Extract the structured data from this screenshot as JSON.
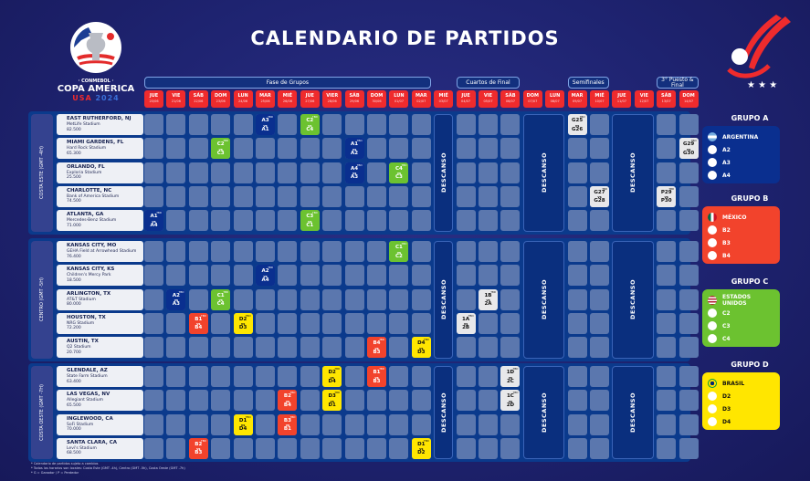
{
  "title": "CALENDARIO DE PARTIDOS",
  "logo": {
    "top": "· CONMEBOL ·",
    "name": "COPA AMERICA",
    "host": "USA",
    "year": "2024"
  },
  "phases": [
    {
      "label": "Fase de Grupos",
      "from": "20/06",
      "to": "02/07"
    },
    {
      "label": "Cuartos de Final",
      "from": "04/07",
      "to": "06/07"
    },
    {
      "label": "Semifinales",
      "from": "09/07",
      "to": "10/07"
    },
    {
      "label": "3° Puesto & Final",
      "from": "13/07",
      "to": "14/07"
    }
  ],
  "dates": [
    {
      "day": "JUE",
      "date": "20/06"
    },
    {
      "day": "VIE",
      "date": "21/06"
    },
    {
      "day": "SÁB",
      "date": "22/06"
    },
    {
      "day": "DOM",
      "date": "23/06"
    },
    {
      "day": "LUN",
      "date": "24/06"
    },
    {
      "day": "MAR",
      "date": "25/06"
    },
    {
      "day": "MIÉ",
      "date": "26/06"
    },
    {
      "day": "JUE",
      "date": "27/06"
    },
    {
      "day": "VIER",
      "date": "28/06"
    },
    {
      "day": "SÁB",
      "date": "29/06"
    },
    {
      "day": "DOM",
      "date": "30/06"
    },
    {
      "day": "LUN",
      "date": "01/07"
    },
    {
      "day": "MAR",
      "date": "02/07"
    },
    {
      "day": "MIÉ",
      "date": "03/07"
    },
    {
      "day": "JUE",
      "date": "04/07"
    },
    {
      "day": "VIE",
      "date": "05/07"
    },
    {
      "day": "SÁB",
      "date": "06/07"
    },
    {
      "day": "DOM",
      "date": "07/07"
    },
    {
      "day": "LUN",
      "date": "08/07"
    },
    {
      "day": "MAR",
      "date": "09/07"
    },
    {
      "day": "MIÉ",
      "date": "10/07"
    },
    {
      "day": "JUE",
      "date": "11/07"
    },
    {
      "day": "VIE",
      "date": "12/07"
    },
    {
      "day": "SÁB",
      "date": "13/07"
    },
    {
      "day": "DOM",
      "date": "14/07"
    }
  ],
  "rest_label": "DESCANSO",
  "rest_days": [
    [
      "03/07"
    ],
    [
      "07/07",
      "08/07"
    ],
    [
      "11/07",
      "12/07"
    ]
  ],
  "regions": [
    {
      "label": "COSTA ESTE (GMT -4H)",
      "venues": [
        {
          "city": "EAST RUTHERFORD, NJ",
          "stadium": "MetLife Stadium",
          "capacity": "82.500"
        },
        {
          "city": "MIAMI GARDENS, FL",
          "stadium": "Hard Rock Stadium",
          "capacity": "65.300"
        },
        {
          "city": "ORLANDO, FL",
          "stadium": "Exploria Stadium",
          "capacity": "25.500"
        },
        {
          "city": "CHARLOTTE, NC",
          "stadium": "Bank of America Stadium",
          "capacity": "74.500"
        },
        {
          "city": "ATLANTA, GA",
          "stadium": "Mercedes-Benz Stadium",
          "capacity": "71.000"
        }
      ]
    },
    {
      "label": "CENTRO (GMT -5H)",
      "venues": [
        {
          "city": "KANSAS CITY, MO",
          "stadium": "GEHA Field at Arrowhead Stadium",
          "capacity": "76.400"
        },
        {
          "city": "KANSAS CITY, KS",
          "stadium": "Children's Mercy Park",
          "capacity": "18.500"
        },
        {
          "city": "ARLINGTON, TX",
          "stadium": "AT&T Stadium",
          "capacity": "80.000"
        },
        {
          "city": "HOUSTON, TX",
          "stadium": "NRG Stadium",
          "capacity": "72.200"
        },
        {
          "city": "AUSTIN, TX",
          "stadium": "Q2 Stadium",
          "capacity": "20.700"
        }
      ]
    },
    {
      "label": "COSTA OESTE (GMT -7H)",
      "venues": [
        {
          "city": "GLENDALE, AZ",
          "stadium": "State Farm Stadium",
          "capacity": "63.400"
        },
        {
          "city": "LAS VEGAS, NV",
          "stadium": "Allegiant Stadium",
          "capacity": "65.500"
        },
        {
          "city": "INGLEWOOD, CA",
          "stadium": "SoFi Stadium",
          "capacity": "70.000"
        },
        {
          "city": "SANTA CLARA, CA",
          "stadium": "Levi's Stadium",
          "capacity": "68.500"
        }
      ]
    }
  ],
  "vs_label": "vs",
  "time_label": "TBD",
  "colors": {
    "A": "#0a2f8f",
    "B": "#f2432c",
    "C": "#6cc230",
    "D": "#ffe600",
    "KO": "#e8e8ea"
  },
  "matches": [
    {
      "venue": "EAST RUTHERFORD, NJ",
      "date": "25/06",
      "home": "A3",
      "away": "A1",
      "group": "A"
    },
    {
      "venue": "EAST RUTHERFORD, NJ",
      "date": "27/06",
      "home": "C2",
      "away": "C4",
      "group": "C"
    },
    {
      "venue": "EAST RUTHERFORD, NJ",
      "date": "09/07",
      "home": "G25",
      "away": "G26",
      "group": "KO"
    },
    {
      "venue": "MIAMI GARDENS, FL",
      "date": "23/06",
      "home": "C2",
      "away": "C3",
      "group": "C"
    },
    {
      "venue": "MIAMI GARDENS, FL",
      "date": "29/06",
      "home": "A1",
      "away": "A2",
      "group": "A"
    },
    {
      "venue": "MIAMI GARDENS, FL",
      "date": "14/07",
      "home": "G29",
      "away": "G30",
      "group": "KO"
    },
    {
      "venue": "ORLANDO, FL",
      "date": "29/06",
      "home": "A4",
      "away": "A3",
      "group": "A"
    },
    {
      "venue": "ORLANDO, FL",
      "date": "01/07",
      "home": "C4",
      "away": "C3",
      "group": "C"
    },
    {
      "venue": "CHARLOTTE, NC",
      "date": "10/07",
      "home": "G27",
      "away": "G28",
      "group": "KO"
    },
    {
      "venue": "CHARLOTTE, NC",
      "date": "13/07",
      "home": "P29",
      "away": "P30",
      "group": "KO"
    },
    {
      "venue": "ATLANTA, GA",
      "date": "20/06",
      "home": "A1",
      "away": "A4",
      "group": "A"
    },
    {
      "venue": "ATLANTA, GA",
      "date": "27/06",
      "home": "C3",
      "away": "C1",
      "group": "C"
    },
    {
      "venue": "KANSAS CITY, MO",
      "date": "01/07",
      "home": "C1",
      "away": "C2",
      "group": "C"
    },
    {
      "venue": "KANSAS CITY, KS",
      "date": "25/06",
      "home": "A2",
      "away": "A4",
      "group": "A"
    },
    {
      "venue": "ARLINGTON, TX",
      "date": "21/06",
      "home": "A2",
      "away": "A3",
      "group": "A"
    },
    {
      "venue": "ARLINGTON, TX",
      "date": "23/06",
      "home": "C1",
      "away": "C4",
      "group": "C"
    },
    {
      "venue": "ARLINGTON, TX",
      "date": "05/07",
      "home": "1B",
      "away": "2A",
      "group": "KO"
    },
    {
      "venue": "HOUSTON, TX",
      "date": "22/06",
      "home": "B1",
      "away": "B4",
      "group": "B"
    },
    {
      "venue": "HOUSTON, TX",
      "date": "24/06",
      "home": "D2",
      "away": "D3",
      "group": "D"
    },
    {
      "venue": "HOUSTON, TX",
      "date": "04/07",
      "home": "1A",
      "away": "2B",
      "group": "KO"
    },
    {
      "venue": "AUSTIN, TX",
      "date": "30/06",
      "home": "B4",
      "away": "B3",
      "group": "B"
    },
    {
      "venue": "AUSTIN, TX",
      "date": "02/07",
      "home": "D4",
      "away": "D3",
      "group": "D"
    },
    {
      "venue": "GLENDALE, AZ",
      "date": "28/06",
      "home": "D2",
      "away": "D4",
      "group": "D"
    },
    {
      "venue": "GLENDALE, AZ",
      "date": "30/06",
      "home": "B1",
      "away": "B3",
      "group": "B"
    },
    {
      "venue": "GLENDALE, AZ",
      "date": "06/07",
      "home": "1D",
      "away": "2C",
      "group": "KO"
    },
    {
      "venue": "LAS VEGAS, NV",
      "date": "26/06",
      "home": "B2",
      "away": "B4",
      "group": "B"
    },
    {
      "venue": "LAS VEGAS, NV",
      "date": "28/06",
      "home": "D3",
      "away": "D1",
      "group": "D"
    },
    {
      "venue": "LAS VEGAS, NV",
      "date": "06/07",
      "home": "1C",
      "away": "2D",
      "group": "KO"
    },
    {
      "venue": "INGLEWOOD, CA",
      "date": "24/06",
      "home": "D1",
      "away": "D4",
      "group": "D"
    },
    {
      "venue": "INGLEWOOD, CA",
      "date": "26/06",
      "home": "B3",
      "away": "B1",
      "group": "B"
    },
    {
      "venue": "SANTA CLARA, CA",
      "date": "22/06",
      "home": "B2",
      "away": "B3",
      "group": "B"
    },
    {
      "venue": "SANTA CLARA, CA",
      "date": "02/07",
      "home": "D1",
      "away": "D2",
      "group": "D"
    }
  ],
  "groups": [
    {
      "title": "GRUPO A",
      "key": "A",
      "text": "#ffffff",
      "teams": [
        "ARGENTINA",
        "A2",
        "A3",
        "A4"
      ],
      "flag": "argentina-flag-icon"
    },
    {
      "title": "GRUPO B",
      "key": "B",
      "text": "#ffffff",
      "teams": [
        "MÉXICO",
        "B2",
        "B3",
        "B4"
      ],
      "flag": "mexico-flag-icon"
    },
    {
      "title": "GRUPO C",
      "key": "C",
      "text": "#ffffff",
      "teams": [
        "ESTADOS UNIDOS",
        "C2",
        "C3",
        "C4"
      ],
      "flag": "usa-flag-icon"
    },
    {
      "title": "GRUPO D",
      "key": "D",
      "text": "#111111",
      "teams": [
        "BRASIL",
        "D2",
        "D3",
        "D4"
      ],
      "flag": "brazil-flag-icon"
    }
  ],
  "notes": [
    "* Calendario de partidos sujeto a cambios",
    "* Todos los horarios son locales: Costa Este (GMT -4h), Centro (GMT -5h), Costa Oeste (GMT -7h)",
    "* G = Ganador / P = Perdedor"
  ]
}
